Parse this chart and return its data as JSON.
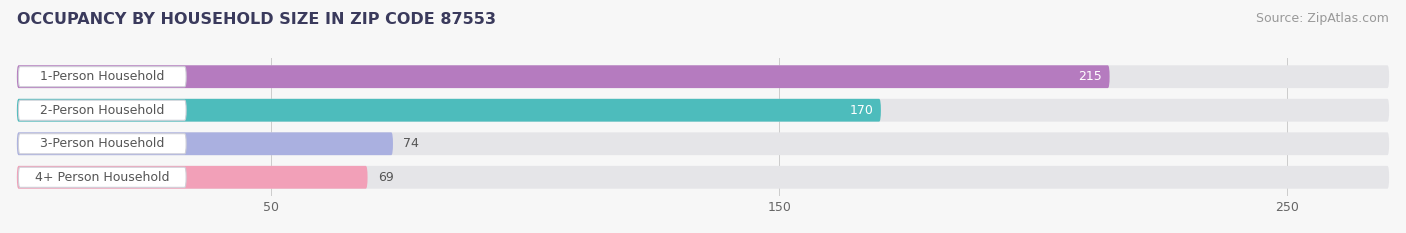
{
  "title": "OCCUPANCY BY HOUSEHOLD SIZE IN ZIP CODE 87553",
  "source": "Source: ZipAtlas.com",
  "categories": [
    "1-Person Household",
    "2-Person Household",
    "3-Person Household",
    "4+ Person Household"
  ],
  "values": [
    215,
    170,
    74,
    69
  ],
  "bar_colors": [
    "#b57bbf",
    "#4dbcbc",
    "#aab0e0",
    "#f2a0b8"
  ],
  "bar_label_colors": [
    "white",
    "white",
    "#666666",
    "#666666"
  ],
  "xlim": [
    0,
    270
  ],
  "xticks": [
    50,
    150,
    250
  ],
  "title_fontsize": 11.5,
  "source_fontsize": 9,
  "label_fontsize": 9,
  "value_fontsize": 9,
  "background_color": "#f7f7f7",
  "bar_background_color": "#e5e5e8"
}
